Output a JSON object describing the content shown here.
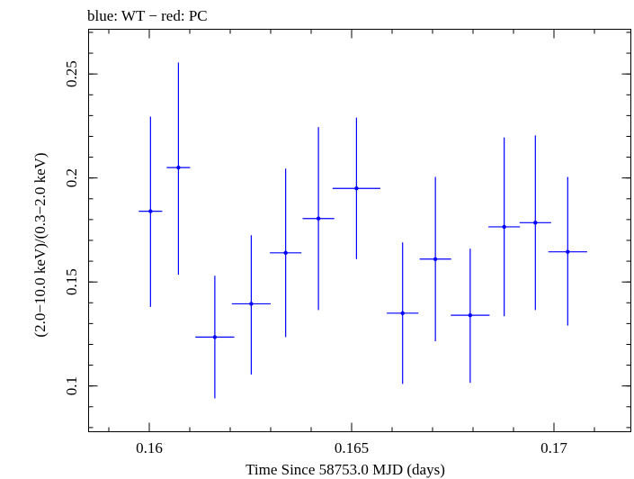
{
  "chart_data": {
    "type": "scatter",
    "title": "blue: WT − red: PC",
    "xlabel": "Time Since 58753.0 MJD (days)",
    "ylabel": "(2.0−10.0 keV)/(0.3−2.0 keV)",
    "xlim": [
      0.1585,
      0.1719
    ],
    "ylim": [
      0.078,
      0.2715
    ],
    "x_ticks": [
      0.16,
      0.165,
      0.17
    ],
    "x_tick_labels": [
      "0.16",
      "0.165",
      "0.17"
    ],
    "y_ticks": [
      0.1,
      0.15,
      0.2,
      0.25
    ],
    "y_tick_labels": [
      "0.1",
      "0.15",
      "0.2",
      "0.25"
    ],
    "grid": false,
    "legend": "none",
    "series": [
      {
        "color": "#0000ff",
        "points": [
          {
            "x": 0.16003,
            "y": 0.184,
            "xerr": 0.00029,
            "ylo": 0.138,
            "yhi": 0.2295
          },
          {
            "x": 0.16072,
            "y": 0.205,
            "xerr": 0.00029,
            "ylo": 0.1535,
            "yhi": 0.2555
          },
          {
            "x": 0.16162,
            "y": 0.1235,
            "xerr": 0.00048,
            "ylo": 0.094,
            "yhi": 0.153
          },
          {
            "x": 0.16252,
            "y": 0.1395,
            "xerr": 0.00048,
            "ylo": 0.1055,
            "yhi": 0.1725
          },
          {
            "x": 0.16337,
            "y": 0.164,
            "xerr": 0.00039,
            "ylo": 0.1235,
            "yhi": 0.2045
          },
          {
            "x": 0.16418,
            "y": 0.1805,
            "xerr": 0.00039,
            "ylo": 0.1365,
            "yhi": 0.2245
          },
          {
            "x": 0.16512,
            "y": 0.195,
            "xerr": 0.00059,
            "ylo": 0.161,
            "yhi": 0.229
          },
          {
            "x": 0.16626,
            "y": 0.135,
            "xerr": 0.00039,
            "ylo": 0.101,
            "yhi": 0.169
          },
          {
            "x": 0.16707,
            "y": 0.161,
            "xerr": 0.00039,
            "ylo": 0.1215,
            "yhi": 0.2005
          },
          {
            "x": 0.16793,
            "y": 0.134,
            "xerr": 0.00048,
            "ylo": 0.1015,
            "yhi": 0.166
          },
          {
            "x": 0.16877,
            "y": 0.1765,
            "xerr": 0.00039,
            "ylo": 0.1335,
            "yhi": 0.2195
          },
          {
            "x": 0.16954,
            "y": 0.1785,
            "xerr": 0.00039,
            "ylo": 0.1365,
            "yhi": 0.2205
          },
          {
            "x": 0.17034,
            "y": 0.1645,
            "xerr": 0.00048,
            "ylo": 0.129,
            "yhi": 0.2005
          }
        ]
      }
    ]
  }
}
